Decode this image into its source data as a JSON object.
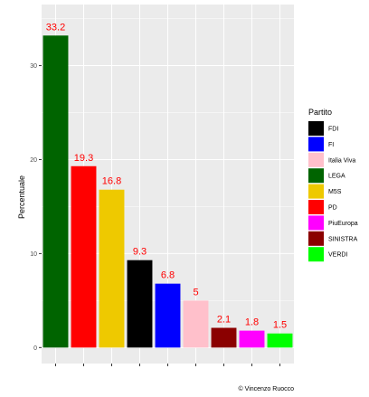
{
  "chart_data": {
    "type": "bar",
    "categories": [
      "LEGA",
      "PD",
      "M5S",
      "FDI",
      "FI",
      "Italia Viva",
      "SINISTRA",
      "PiuEuropa",
      "VERDI"
    ],
    "values": [
      33.2,
      19.3,
      16.8,
      9.3,
      6.8,
      5,
      2.1,
      1.8,
      1.5
    ],
    "value_labels": [
      "33.2",
      "19.3",
      "16.8",
      "9.3",
      "6.8",
      "5",
      "2.1",
      "1.8",
      "1.5"
    ],
    "bar_colors": [
      "#006400",
      "#ff0000",
      "#eec900",
      "#000000",
      "#0000ff",
      "#ffc0cb",
      "#8b0000",
      "#ff00ff",
      "#00ff00"
    ],
    "ylabel": "Percentuale",
    "xlabel": "",
    "ylim": [
      -1.7,
      36.5
    ],
    "yticks": [
      0,
      10,
      20,
      30
    ],
    "ytick_labels": [
      "0",
      "10",
      "20",
      "30"
    ],
    "grid": true,
    "data_label_color": "#ff0000",
    "legend": {
      "title": "Partito",
      "placement": "right",
      "entries": [
        {
          "label": "FDI",
          "color": "#000000"
        },
        {
          "label": "FI",
          "color": "#0000ff"
        },
        {
          "label": "Italia Viva",
          "color": "#ffc0cb"
        },
        {
          "label": "LEGA",
          "color": "#006400"
        },
        {
          "label": "M5S",
          "color": "#eec900"
        },
        {
          "label": "PD",
          "color": "#ff0000"
        },
        {
          "label": "PiuEuropa",
          "color": "#ff00ff"
        },
        {
          "label": "SINISTRA",
          "color": "#8b0000"
        },
        {
          "label": "VERDI",
          "color": "#00ff00"
        }
      ]
    },
    "caption": "© Vincenzo Ruocco"
  }
}
